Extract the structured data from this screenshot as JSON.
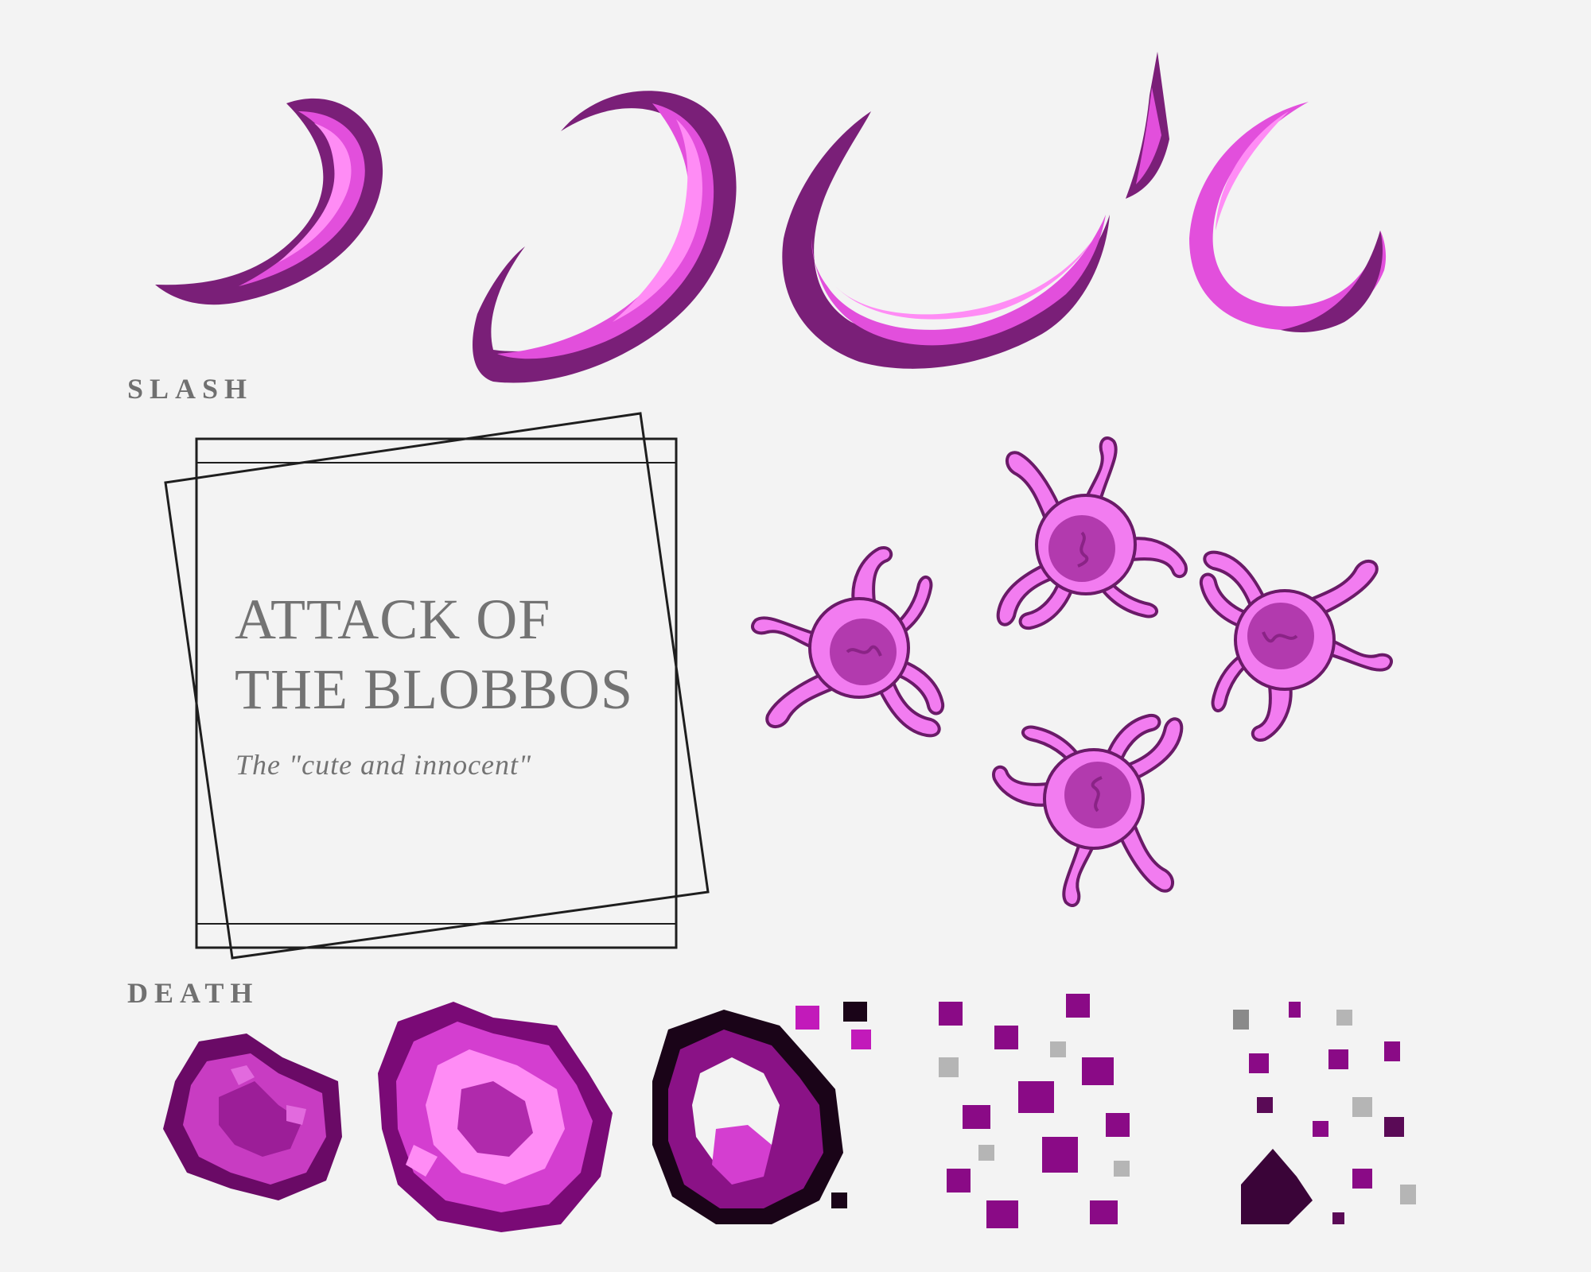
{
  "sections": {
    "slash": {
      "label": "SLASH"
    },
    "death": {
      "label": "DEATH"
    }
  },
  "title_card": {
    "title_line_1": "ATTACK OF",
    "title_line_2": "THE BLOBBOS",
    "subtitle": "The \"cute and innocent\""
  },
  "colors": {
    "background": "#f3f3f3",
    "label_gray": "#707070",
    "magenta_light": "#ff8cf5",
    "magenta_mid": "#e24fdc",
    "magenta_dark": "#7a1f78",
    "magenta_deep": "#4a0a48",
    "blob_core": "#b23aae",
    "frame_line": "#1e1e1e"
  },
  "icons": {
    "slash_frames": [
      "slash-frame-1-icon",
      "slash-frame-2-icon",
      "slash-frame-3-icon",
      "slash-frame-4-icon"
    ],
    "blobbo_frames": [
      "blobbo-left-icon",
      "blobbo-top-icon",
      "blobbo-right-icon",
      "blobbo-bottom-icon"
    ],
    "death_frames": [
      "death-frame-1-icon",
      "death-frame-2-icon",
      "death-frame-3-icon",
      "death-frame-4-icon",
      "death-frame-5-icon"
    ]
  }
}
